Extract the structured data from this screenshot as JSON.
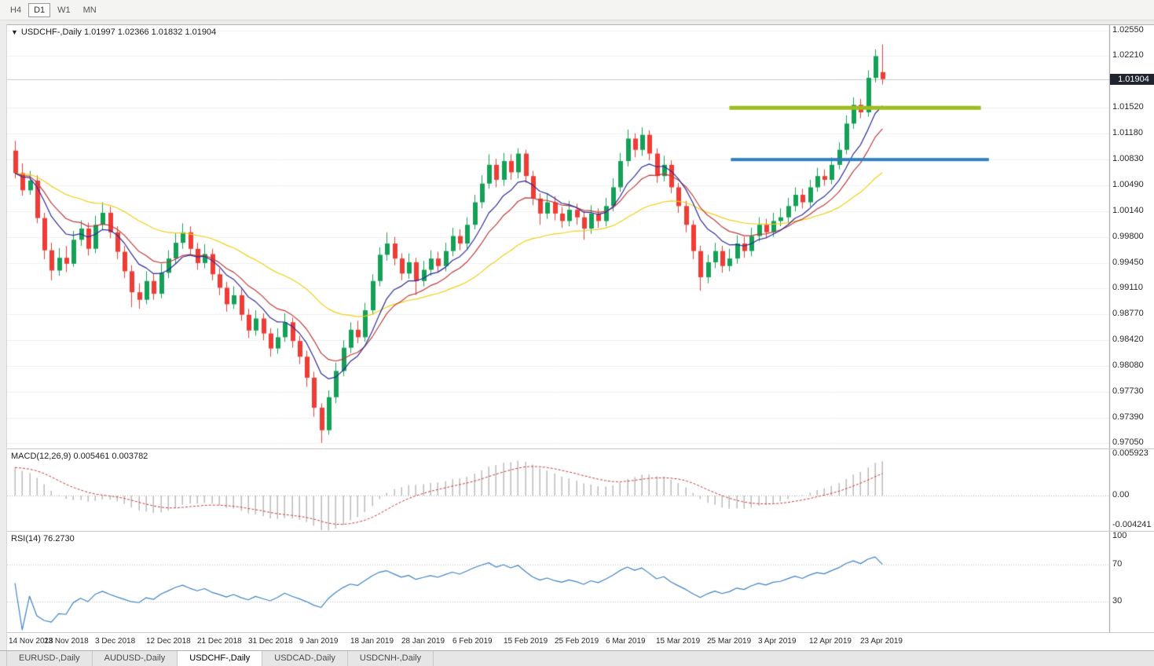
{
  "toolbar": {
    "timeframes": [
      {
        "label": "H4",
        "active": false
      },
      {
        "label": "D1",
        "active": true
      },
      {
        "label": "W1",
        "active": false
      },
      {
        "label": "MN",
        "active": false
      }
    ]
  },
  "chart": {
    "collapse_icon": "▼",
    "symbol_title": "USDCHF-,Daily",
    "ohlc_text": "1.01997 1.02366 1.01832 1.01904",
    "current_price": "1.01904",
    "price_axis_labels": [
      "1.02550",
      "1.02210",
      "1.01520",
      "1.01180",
      "1.00830",
      "1.00490",
      "1.00140",
      "0.99800",
      "0.99450",
      "0.99110",
      "0.98770",
      "0.98420",
      "0.98080",
      "0.97730",
      "0.97390",
      "0.97050"
    ]
  },
  "macd": {
    "label": "MACD(12,26,9)",
    "values": "0.005461 0.003782",
    "axis_labels": [
      "0.005923",
      "0.00",
      "-0.004241"
    ]
  },
  "rsi": {
    "label": "RSI(14)",
    "value": "76.2730",
    "axis_labels": [
      "100",
      "70",
      "30"
    ]
  },
  "tabs": [
    {
      "label": "EURUSD-,Daily",
      "active": false
    },
    {
      "label": "AUDUSD-,Daily",
      "active": false
    },
    {
      "label": "USDCHF-,Daily",
      "active": true
    },
    {
      "label": "USDCAD-,Daily",
      "active": false
    },
    {
      "label": "USDCNH-,Daily",
      "active": false
    }
  ],
  "colors": {
    "candle_up": "#14a057",
    "candle_down": "#ef3c35",
    "macd_hist": "#b6b6b6",
    "macd_signal": "#c93838",
    "rsi_line": "#3f82c4",
    "badge_bg": "#20242e"
  },
  "chart_data": {
    "type": "candlestick",
    "symbol": "USDCHF",
    "timeframe": "Daily",
    "title": "USDCHF-,Daily",
    "current_bar": {
      "open": 1.01997,
      "high": 1.02366,
      "low": 1.01832,
      "close": 1.01904
    },
    "y_range": [
      0.9705,
      1.0255
    ],
    "x_labels": [
      "14 Nov 2018",
      "23 Nov 2018",
      "3 Dec 2018",
      "12 Dec 2018",
      "21 Dec 2018",
      "31 Dec 2018",
      "9 Jan 2019",
      "18 Jan 2019",
      "28 Jan 2019",
      "6 Feb 2019",
      "15 Feb 2019",
      "25 Feb 2019",
      "6 Mar 2019",
      "15 Mar 2019",
      "25 Mar 2019",
      "3 Apr 2019",
      "12 Apr 2019",
      "23 Apr 2019"
    ],
    "x_label_every": 7,
    "candles": [
      [
        1.0095,
        1.0108,
        1.0058,
        1.0065
      ],
      [
        1.0065,
        1.0078,
        1.0035,
        1.0042
      ],
      [
        1.0042,
        1.0068,
        1.0036,
        1.0055
      ],
      [
        1.0055,
        1.0062,
        0.9998,
        1.0005
      ],
      [
        1.0005,
        1.0012,
        0.995,
        0.9962
      ],
      [
        0.9962,
        0.9972,
        0.9922,
        0.9935
      ],
      [
        0.9935,
        0.9965,
        0.9928,
        0.9952
      ],
      [
        0.9952,
        0.9968,
        0.9933,
        0.9944
      ],
      [
        0.9944,
        0.9988,
        0.994,
        0.9976
      ],
      [
        0.9976,
        1.0002,
        0.9968,
        0.9991
      ],
      [
        0.9991,
        0.9999,
        0.9955,
        0.9964
      ],
      [
        0.9964,
        1.0008,
        0.9958,
        0.9996
      ],
      [
        0.9996,
        1.0026,
        0.999,
        1.0012
      ],
      [
        1.0012,
        1.002,
        0.9978,
        0.9986
      ],
      [
        0.9986,
        0.9994,
        0.995,
        0.996
      ],
      [
        0.996,
        0.9968,
        0.9925,
        0.9934
      ],
      [
        0.9934,
        0.9942,
        0.9886,
        0.9906
      ],
      [
        0.9906,
        0.9918,
        0.9884,
        0.9896
      ],
      [
        0.9896,
        0.9934,
        0.989,
        0.9921
      ],
      [
        0.9921,
        0.993,
        0.9896,
        0.9904
      ],
      [
        0.9904,
        0.9944,
        0.9898,
        0.9932
      ],
      [
        0.9932,
        0.9962,
        0.9925,
        0.9951
      ],
      [
        0.9951,
        0.9985,
        0.9944,
        0.9972
      ],
      [
        0.9972,
        0.9998,
        0.9964,
        0.9986
      ],
      [
        0.9986,
        0.9994,
        0.9956,
        0.9964
      ],
      [
        0.9964,
        0.9972,
        0.9936,
        0.9945
      ],
      [
        0.9945,
        0.997,
        0.9938,
        0.9957
      ],
      [
        0.9957,
        0.9964,
        0.9922,
        0.993
      ],
      [
        0.993,
        0.9938,
        0.9902,
        0.9912
      ],
      [
        0.9912,
        0.992,
        0.988,
        0.989
      ],
      [
        0.989,
        0.9914,
        0.9884,
        0.9902
      ],
      [
        0.9902,
        0.991,
        0.9868,
        0.9876
      ],
      [
        0.9876,
        0.9884,
        0.9845,
        0.9855
      ],
      [
        0.9855,
        0.9882,
        0.9848,
        0.9871
      ],
      [
        0.9871,
        0.9878,
        0.9842,
        0.9851
      ],
      [
        0.9851,
        0.9858,
        0.982,
        0.9831
      ],
      [
        0.9831,
        0.9858,
        0.9824,
        0.9846
      ],
      [
        0.9846,
        0.9878,
        0.984,
        0.9866
      ],
      [
        0.9866,
        0.9872,
        0.9832,
        0.9841
      ],
      [
        0.9841,
        0.9848,
        0.981,
        0.982
      ],
      [
        0.982,
        0.9828,
        0.978,
        0.9792
      ],
      [
        0.9792,
        0.98,
        0.974,
        0.9752
      ],
      [
        0.9752,
        0.9758,
        0.9705,
        0.9722
      ],
      [
        0.9722,
        0.9775,
        0.9716,
        0.9766
      ],
      [
        0.9766,
        0.9812,
        0.9758,
        0.9801
      ],
      [
        0.9801,
        0.9842,
        0.9794,
        0.9832
      ],
      [
        0.9832,
        0.9866,
        0.9825,
        0.9856
      ],
      [
        0.9856,
        0.9868,
        0.9838,
        0.9846
      ],
      [
        0.9846,
        0.9892,
        0.984,
        0.9882
      ],
      [
        0.9882,
        0.993,
        0.9876,
        0.9921
      ],
      [
        0.9921,
        0.9966,
        0.9914,
        0.9956
      ],
      [
        0.9956,
        0.9986,
        0.9948,
        0.9971
      ],
      [
        0.9971,
        0.998,
        0.9942,
        0.9951
      ],
      [
        0.9951,
        0.9958,
        0.9922,
        0.9931
      ],
      [
        0.9931,
        0.9958,
        0.9924,
        0.9946
      ],
      [
        0.9946,
        0.9952,
        0.9902,
        0.9921
      ],
      [
        0.9921,
        0.9948,
        0.9914,
        0.9936
      ],
      [
        0.9936,
        0.9962,
        0.9928,
        0.9951
      ],
      [
        0.9951,
        0.996,
        0.9932,
        0.9941
      ],
      [
        0.9941,
        0.9972,
        0.9934,
        0.9961
      ],
      [
        0.9961,
        0.9992,
        0.9954,
        0.9981
      ],
      [
        0.9981,
        0.999,
        0.9962,
        0.9971
      ],
      [
        0.9971,
        1.0006,
        0.9964,
        0.9996
      ],
      [
        0.9996,
        1.0036,
        0.999,
        1.0026
      ],
      [
        1.0026,
        1.0062,
        1.0018,
        1.0051
      ],
      [
        1.0051,
        1.009,
        1.0044,
        1.0076
      ],
      [
        1.0076,
        1.0084,
        1.0046,
        1.0056
      ],
      [
        1.0056,
        1.0092,
        1.0048,
        1.0081
      ],
      [
        1.0081,
        1.009,
        1.0056,
        1.0066
      ],
      [
        1.0066,
        1.0098,
        1.0058,
        1.0091
      ],
      [
        1.0091,
        1.0096,
        1.0052,
        1.0061
      ],
      [
        1.0061,
        1.0068,
        1.0022,
        1.0031
      ],
      [
        1.0031,
        1.0038,
        0.9996,
        1.0011
      ],
      [
        1.0011,
        1.0038,
        1.0004,
        1.0026
      ],
      [
        1.0026,
        1.0034,
        1.0002,
        1.0011
      ],
      [
        1.0011,
        1.002,
        0.9992,
        1.0001
      ],
      [
        1.0001,
        1.0028,
        0.9994,
        1.0016
      ],
      [
        1.0016,
        1.0024,
        0.9996,
        1.0006
      ],
      [
        1.0006,
        1.0014,
        0.9976,
        0.9991
      ],
      [
        0.9991,
        1.0022,
        0.9984,
        1.0011
      ],
      [
        1.0011,
        1.0018,
        0.9992,
        1.0001
      ],
      [
        1.0001,
        1.0032,
        0.9994,
        1.0021
      ],
      [
        1.0021,
        1.0058,
        1.0014,
        1.0046
      ],
      [
        1.0046,
        1.0092,
        1.004,
        1.0081
      ],
      [
        1.0081,
        1.0123,
        1.0074,
        1.0111
      ],
      [
        1.0111,
        1.0118,
        1.0086,
        1.0096
      ],
      [
        1.0096,
        1.0126,
        1.0088,
        1.0116
      ],
      [
        1.0116,
        1.0122,
        1.0082,
        1.0091
      ],
      [
        1.0091,
        1.0098,
        1.0052,
        1.0061
      ],
      [
        1.0061,
        1.0088,
        1.0054,
        1.0076
      ],
      [
        1.0076,
        1.0082,
        1.0038,
        1.0046
      ],
      [
        1.0046,
        1.0052,
        1.0012,
        1.0021
      ],
      [
        1.0021,
        1.0028,
        0.9986,
        0.9996
      ],
      [
        0.9996,
        1.0002,
        0.995,
        0.9961
      ],
      [
        0.9961,
        0.9968,
        0.9908,
        0.9926
      ],
      [
        0.9926,
        0.9956,
        0.9918,
        0.9946
      ],
      [
        0.9946,
        0.9972,
        0.9938,
        0.9961
      ],
      [
        0.9961,
        0.9968,
        0.9932,
        0.9941
      ],
      [
        0.9941,
        0.9964,
        0.9934,
        0.9951
      ],
      [
        0.9951,
        0.9982,
        0.9944,
        0.9971
      ],
      [
        0.9971,
        0.998,
        0.9952,
        0.9961
      ],
      [
        0.9961,
        0.9992,
        0.9954,
        0.9981
      ],
      [
        0.9981,
        1.0006,
        0.9974,
        0.9996
      ],
      [
        0.9996,
        1.0004,
        0.9978,
        0.9986
      ],
      [
        0.9986,
        1.0012,
        0.998,
        1.0001
      ],
      [
        1.0001,
        1.0018,
        0.9994,
        1.0006
      ],
      [
        1.0006,
        1.0032,
        0.9999,
        1.0021
      ],
      [
        1.0021,
        1.0046,
        1.0014,
        1.0036
      ],
      [
        1.0036,
        1.0044,
        1.0018,
        1.0026
      ],
      [
        1.0026,
        1.0056,
        1.002,
        1.0046
      ],
      [
        1.0046,
        1.0072,
        1.004,
        1.0061
      ],
      [
        1.0061,
        1.007,
        1.0048,
        1.0056
      ],
      [
        1.0056,
        1.0086,
        1.005,
        1.0076
      ],
      [
        1.0076,
        1.0106,
        1.007,
        1.0096
      ],
      [
        1.0096,
        1.0142,
        1.009,
        1.0131
      ],
      [
        1.0131,
        1.0166,
        1.0124,
        1.0156
      ],
      [
        1.0156,
        1.0164,
        1.0138,
        1.0146
      ],
      [
        1.0146,
        1.0202,
        1.014,
        1.0192
      ],
      [
        1.0192,
        1.023,
        1.0186,
        1.0221
      ],
      [
        1.01997,
        1.02366,
        1.01832,
        1.01904
      ]
    ],
    "overlays": {
      "horizontal_lines": [
        {
          "name": "resistance-line",
          "price": 1.0152,
          "from_index": 98,
          "to_index": 132.5,
          "thickness": 5,
          "color": "#9ebc20"
        },
        {
          "name": "support-line",
          "price": 1.0083,
          "from_index": 98.2,
          "to_index": 133.6,
          "thickness": 4,
          "color": "#2e7fc1"
        }
      ],
      "moving_averages": [
        {
          "name": "fast-ma",
          "period": 8,
          "type": "ema",
          "color": "#2b2b9d"
        },
        {
          "name": "medium-ma",
          "period": 13,
          "type": "ema",
          "color": "#c03a3a"
        },
        {
          "name": "slow-ma",
          "period": 34,
          "type": "ema",
          "color": "#f1ce16"
        }
      ]
    },
    "indicators": {
      "macd": {
        "fast": 12,
        "slow": 26,
        "signal": 9,
        "current_macd": 0.005461,
        "current_signal": 0.003782,
        "range": [
          -0.004241,
          0.005923
        ]
      },
      "rsi": {
        "period": 14,
        "current": 76.273,
        "levels": [
          70,
          30
        ],
        "range": [
          0,
          100
        ]
      }
    }
  }
}
